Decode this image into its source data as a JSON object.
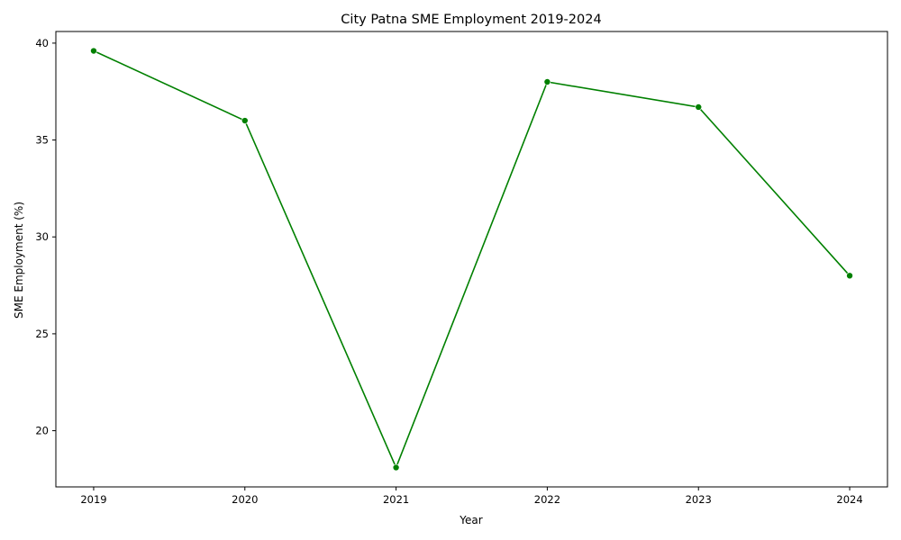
{
  "chart_data": {
    "type": "line",
    "title": "City Patna SME Employment 2019-2024",
    "xlabel": "Year",
    "ylabel": "SME Employment (%)",
    "x": [
      2019,
      2020,
      2021,
      2022,
      2023,
      2024
    ],
    "x_tick_labels": [
      "2019",
      "2020",
      "2021",
      "2022",
      "2023",
      "2024"
    ],
    "y_ticks": [
      20,
      25,
      30,
      35,
      40
    ],
    "y_tick_labels": [
      "20",
      "25",
      "30",
      "35",
      "40"
    ],
    "xlim": [
      2018.75,
      2024.25
    ],
    "ylim": [
      17.1,
      40.6
    ],
    "series": [
      {
        "values": [
          39.6,
          36.0,
          18.1,
          38.0,
          36.7,
          28.0
        ],
        "color": "#008000",
        "marker": "circle"
      }
    ],
    "grid": false,
    "legend": "none"
  }
}
